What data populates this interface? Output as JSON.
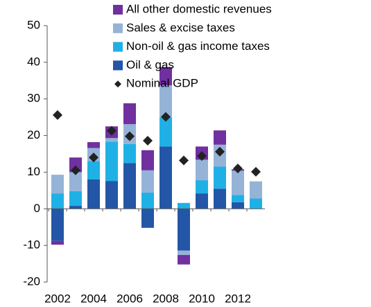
{
  "chart_data": {
    "type": "bar",
    "stacked": true,
    "categories": [
      "2002",
      null,
      "2004",
      null,
      "2006",
      null,
      "2008",
      null,
      "2010",
      null,
      "2012",
      null
    ],
    "series": [
      {
        "name": "Oil & gas",
        "color": "#2356a6",
        "values": [
          -8.8,
          0.8,
          8.0,
          7.6,
          12.5,
          -5.2,
          17.0,
          -11.4,
          4.2,
          5.5,
          1.8,
          0
        ]
      },
      {
        "name": "Non-oil & gas income taxes",
        "color": "#1fb1e6",
        "values": [
          4.2,
          4.0,
          5.0,
          10.7,
          5.2,
          4.4,
          8.0,
          1.6,
          3.6,
          6.0,
          2.0,
          2.8
        ]
      },
      {
        "name": "Sales & excise taxes",
        "color": "#95b3d7",
        "values": [
          5.1,
          5.2,
          3.6,
          1.0,
          5.4,
          6.1,
          8.7,
          -1.2,
          5.6,
          6.0,
          6.6,
          4.7
        ]
      },
      {
        "name": "All other domestic revenues",
        "color": "#7030a0",
        "values": [
          -1.0,
          4.0,
          1.6,
          3.2,
          5.7,
          5.5,
          5.0,
          -2.6,
          3.6,
          3.9,
          0.4,
          0
        ]
      },
      {
        "name": "Nominal GDP",
        "color": "#222222",
        "type": "scatter",
        "values": [
          25.6,
          10.5,
          14.0,
          21.3,
          19.8,
          18.6,
          25.1,
          13.2,
          14.4,
          15.6,
          11.0,
          10.1
        ]
      }
    ],
    "ylim": [
      -20,
      50
    ],
    "yticks": [
      -20,
      -10,
      0,
      10,
      20,
      30,
      40,
      50
    ],
    "grid": false,
    "legend": "top"
  }
}
